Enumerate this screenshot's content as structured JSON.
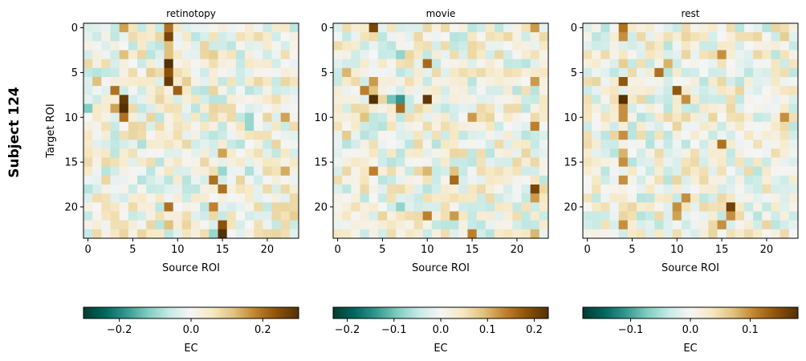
{
  "figure": {
    "row_label": "Subject 124"
  },
  "chart_data": [
    {
      "type": "heatmap",
      "title": "retinotopy",
      "xlabel": "Source ROI",
      "ylabel": "Target ROI",
      "x_ticks": [
        0,
        5,
        10,
        15,
        20
      ],
      "y_ticks": [
        0,
        5,
        10,
        15,
        20
      ],
      "n": 24,
      "colormap": "BrBG_r",
      "vmin": -0.3,
      "vmax": 0.3,
      "colorbar": {
        "label": "EC",
        "ticks": [
          -0.2,
          0.0,
          0.2
        ],
        "tick_labels": [
          "−0.2",
          "0.0",
          "0.2"
        ]
      },
      "seed": 11,
      "strong": [
        [
          0,
          4,
          0.15
        ],
        [
          0,
          9,
          0.2
        ],
        [
          1,
          9,
          0.26
        ],
        [
          2,
          9,
          0.12
        ],
        [
          3,
          4,
          0.12
        ],
        [
          3,
          9,
          0.12
        ],
        [
          3,
          14,
          0.1
        ],
        [
          4,
          9,
          0.3
        ],
        [
          5,
          9,
          0.24
        ],
        [
          5,
          7,
          0.1
        ],
        [
          6,
          9,
          0.28
        ],
        [
          6,
          1,
          0.12
        ],
        [
          6,
          11,
          0.1
        ],
        [
          7,
          3,
          0.2
        ],
        [
          7,
          10,
          0.22
        ],
        [
          8,
          4,
          0.28
        ],
        [
          9,
          3,
          0.15
        ],
        [
          9,
          4,
          0.36
        ],
        [
          9,
          0,
          -0.12
        ],
        [
          10,
          4,
          0.2
        ],
        [
          10,
          18,
          -0.1
        ],
        [
          10,
          22,
          0.15
        ],
        [
          11,
          18,
          -0.1
        ],
        [
          13,
          6,
          -0.08
        ],
        [
          14,
          15,
          0.15
        ],
        [
          16,
          18,
          -0.08
        ],
        [
          16,
          15,
          -0.1
        ],
        [
          16,
          22,
          0.14
        ],
        [
          17,
          14,
          0.2
        ],
        [
          18,
          15,
          0.2
        ],
        [
          20,
          9,
          0.2
        ],
        [
          20,
          14,
          0.18
        ],
        [
          21,
          23,
          0.1
        ],
        [
          22,
          15,
          0.24
        ],
        [
          22,
          9,
          0.12
        ],
        [
          23,
          15,
          0.36
        ],
        [
          23,
          14,
          -0.1
        ]
      ]
    },
    {
      "type": "heatmap",
      "title": "movie",
      "xlabel": "Source ROI",
      "ylabel": "",
      "x_ticks": [
        0,
        5,
        10,
        15,
        20
      ],
      "y_ticks": [
        0,
        5,
        10,
        15,
        20
      ],
      "n": 24,
      "colormap": "BrBG_r",
      "vmin": -0.23,
      "vmax": 0.23,
      "colorbar": {
        "label": "EC",
        "ticks": [
          -0.2,
          -0.1,
          0.0,
          0.1,
          0.2
        ],
        "tick_labels": [
          "−0.2",
          "−0.1",
          "0.0",
          "0.1",
          "0.2"
        ]
      },
      "seed": 29,
      "strong": [
        [
          0,
          4,
          0.2
        ],
        [
          0,
          22,
          0.12
        ],
        [
          3,
          7,
          -0.08
        ],
        [
          4,
          10,
          0.16
        ],
        [
          5,
          1,
          0.1
        ],
        [
          6,
          4,
          0.12
        ],
        [
          6,
          22,
          0.12
        ],
        [
          7,
          3,
          0.14
        ],
        [
          7,
          4,
          0.09
        ],
        [
          8,
          4,
          0.23
        ],
        [
          8,
          6,
          -0.1
        ],
        [
          8,
          7,
          -0.14
        ],
        [
          8,
          10,
          0.22
        ],
        [
          9,
          7,
          0.16
        ],
        [
          10,
          3,
          0.09
        ],
        [
          10,
          15,
          0.12
        ],
        [
          11,
          22,
          0.14
        ],
        [
          12,
          1,
          0.08
        ],
        [
          16,
          4,
          0.14
        ],
        [
          16,
          10,
          0.1
        ],
        [
          16,
          13,
          0.09
        ],
        [
          17,
          13,
          0.16
        ],
        [
          18,
          22,
          0.2
        ],
        [
          19,
          22,
          0.12
        ],
        [
          20,
          7,
          -0.08
        ],
        [
          21,
          10,
          0.14
        ],
        [
          21,
          13,
          0.12
        ],
        [
          23,
          15,
          0.14
        ],
        [
          23,
          22,
          0.1
        ]
      ]
    },
    {
      "type": "heatmap",
      "title": "rest",
      "xlabel": "Source ROI",
      "ylabel": "",
      "x_ticks": [
        0,
        5,
        10,
        15,
        20
      ],
      "y_ticks": [
        0,
        5,
        10,
        15,
        20
      ],
      "n": 24,
      "colormap": "BrBG_r",
      "vmin": -0.18,
      "vmax": 0.18,
      "colorbar": {
        "label": "EC",
        "ticks": [
          -0.1,
          0.0,
          0.1
        ],
        "tick_labels": [
          "−0.1",
          "0.0",
          "0.1"
        ]
      },
      "seed": 47,
      "strong": [
        [
          0,
          4,
          0.12
        ],
        [
          1,
          4,
          0.1
        ],
        [
          1,
          22,
          0.06
        ],
        [
          3,
          15,
          0.1
        ],
        [
          4,
          4,
          0.06
        ],
        [
          4,
          9,
          0.08
        ],
        [
          5,
          8,
          0.12
        ],
        [
          6,
          4,
          0.14
        ],
        [
          7,
          10,
          0.14
        ],
        [
          8,
          4,
          0.18
        ],
        [
          8,
          11,
          0.1
        ],
        [
          9,
          4,
          0.1
        ],
        [
          10,
          4,
          0.1
        ],
        [
          10,
          22,
          0.1
        ],
        [
          12,
          4,
          0.1
        ],
        [
          13,
          15,
          0.12
        ],
        [
          14,
          4,
          0.08
        ],
        [
          15,
          4,
          0.1
        ],
        [
          17,
          4,
          0.1
        ],
        [
          19,
          11,
          0.1
        ],
        [
          20,
          10,
          0.1
        ],
        [
          20,
          16,
          0.16
        ],
        [
          21,
          10,
          0.09
        ],
        [
          21,
          16,
          0.1
        ],
        [
          22,
          15,
          0.1
        ],
        [
          22,
          4,
          0.1
        ]
      ]
    }
  ]
}
